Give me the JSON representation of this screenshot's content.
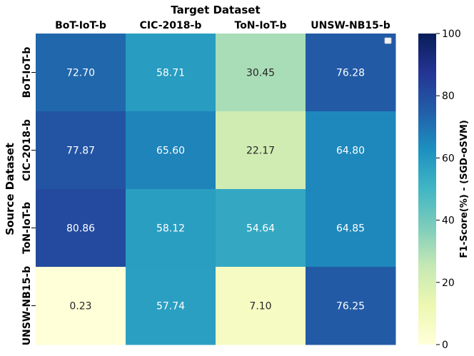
{
  "chart_data": {
    "type": "heatmap",
    "xlabel": "Target Dataset",
    "ylabel": "Source Dataset",
    "x_categories": [
      "BoT-IoT-b",
      "CIC-2018-b",
      "ToN-IoT-b",
      "UNSW-NB15-b"
    ],
    "y_categories": [
      "BoT-IoT-b",
      "CIC-2018-b",
      "ToN-IoT-b",
      "UNSW-NB15-b"
    ],
    "values": [
      [
        72.7,
        58.71,
        30.45,
        76.28
      ],
      [
        77.87,
        65.6,
        22.17,
        64.8
      ],
      [
        80.86,
        58.12,
        54.64,
        64.85
      ],
      [
        0.23,
        57.74,
        7.1,
        76.25
      ]
    ],
    "value_labels": [
      [
        "72.70",
        "58.71",
        "30.45",
        "76.28"
      ],
      [
        "77.87",
        "65.60",
        "22.17",
        "64.80"
      ],
      [
        "80.86",
        "58.12",
        "54.64",
        "64.85"
      ],
      [
        "0.23",
        "57.74",
        "7.10",
        "76.25"
      ]
    ],
    "colorbar": {
      "label": "F1-Score(%) - (SGD-oSVM)",
      "range": [
        0,
        100
      ],
      "ticks": [
        0,
        20,
        40,
        60,
        80,
        100
      ],
      "tick_labels": [
        "0",
        "20",
        "40",
        "60",
        "80",
        "100"
      ],
      "colormap": "YlGnBu"
    },
    "legend": {
      "placement": "top-right",
      "entries": []
    },
    "grid": false
  }
}
